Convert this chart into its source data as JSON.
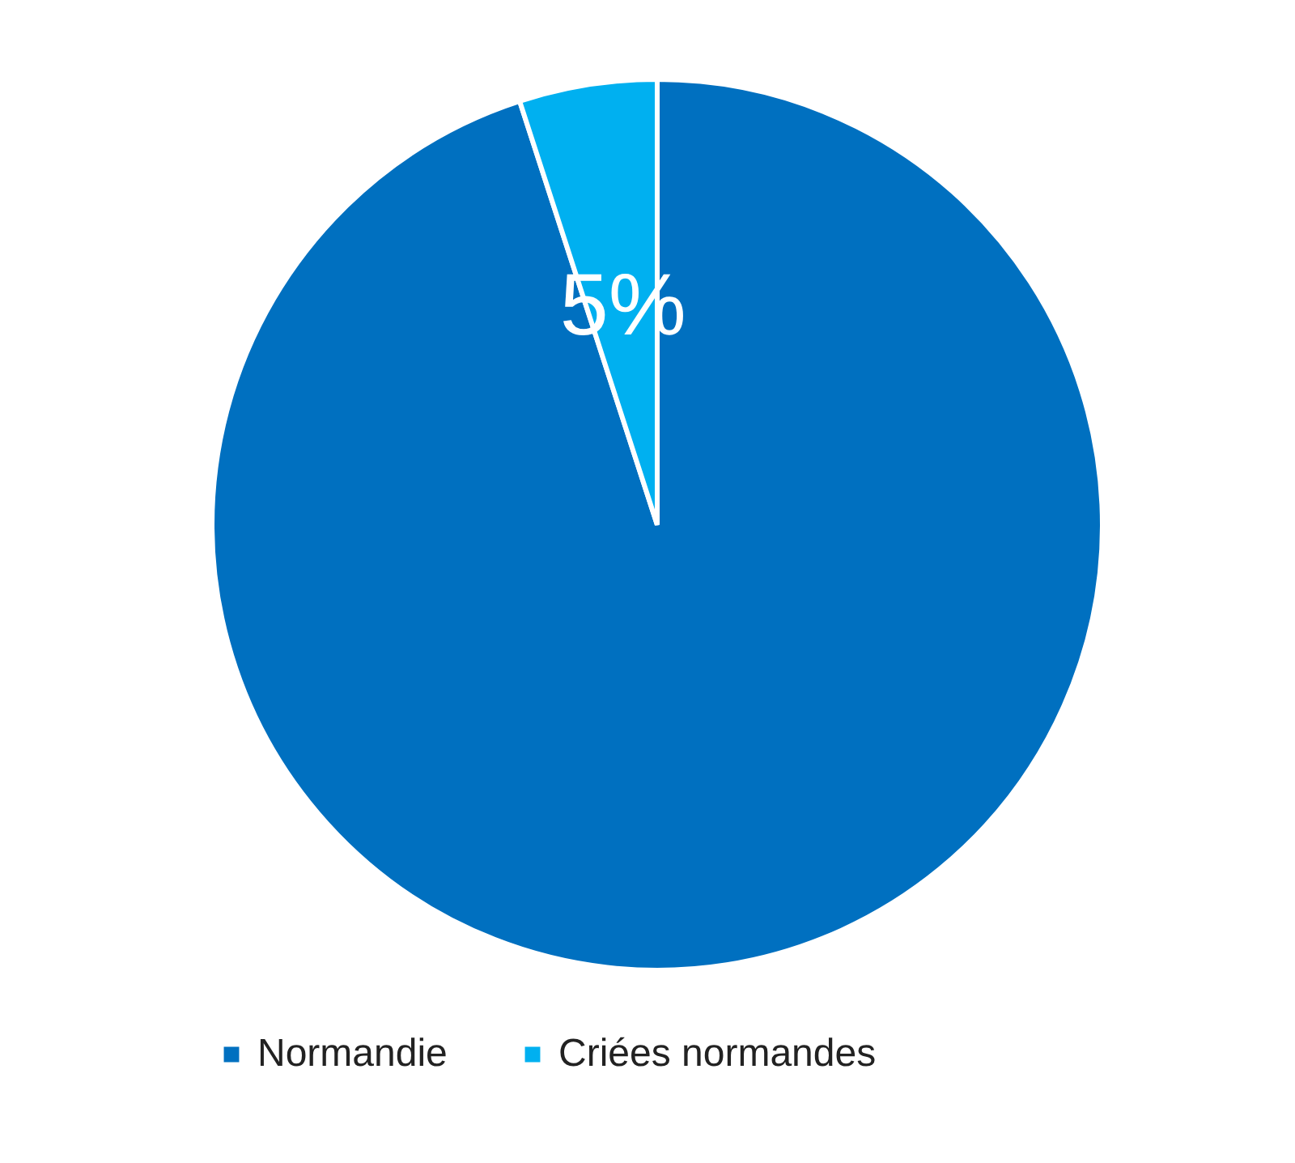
{
  "chart_data": {
    "type": "pie",
    "categories": [
      "Normandie",
      "Criées normandes"
    ],
    "values": [
      95,
      5
    ],
    "colors": [
      "#0070c0",
      "#00b0f0"
    ],
    "value_labels": [
      null,
      "5%"
    ],
    "legend": "bottom"
  }
}
